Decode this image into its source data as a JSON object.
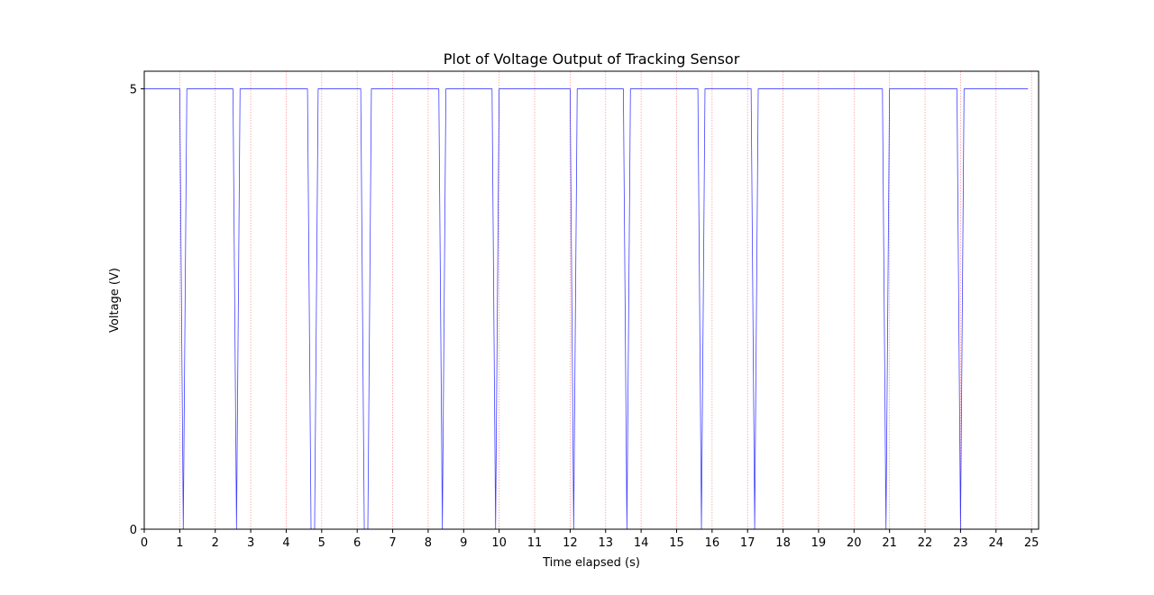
{
  "chart_data": {
    "type": "line",
    "title": "Plot of Voltage Output of Tracking Sensor",
    "xlabel": "Time elapsed (s)",
    "ylabel": "Voltage (V)",
    "xlim": [
      0,
      25.2
    ],
    "ylim": [
      0,
      5.2
    ],
    "xticks": [
      0,
      1,
      2,
      3,
      4,
      5,
      6,
      7,
      8,
      9,
      10,
      11,
      12,
      13,
      14,
      15,
      16,
      17,
      18,
      19,
      20,
      21,
      22,
      23,
      24,
      25
    ],
    "xtick_labels": [
      "0",
      "1",
      "2",
      "3",
      "4",
      "5",
      "6",
      "7",
      "8",
      "9",
      "10",
      "11",
      "12",
      "13",
      "14",
      "15",
      "16",
      "17",
      "18",
      "19",
      "20",
      "21",
      "22",
      "23",
      "24",
      "25"
    ],
    "yticks": [
      0,
      5
    ],
    "ytick_labels": [
      "0",
      "5"
    ],
    "grid": "x-only dotted",
    "colors": {
      "line": "#0000ff",
      "grid": "#ff9999"
    },
    "series": [
      {
        "x": [
          0,
          1.0,
          1.1,
          1.2,
          2.5,
          2.6,
          2.7,
          4.6,
          4.7,
          4.8,
          4.9,
          6.1,
          6.2,
          6.3,
          6.4,
          8.3,
          8.4,
          8.5,
          9.8,
          9.9,
          10.0,
          12.0,
          12.1,
          12.2,
          13.5,
          13.6,
          13.7,
          15.6,
          15.7,
          15.8,
          17.1,
          17.2,
          17.3,
          20.8,
          20.9,
          21.0,
          22.9,
          23.0,
          23.1,
          24.9
        ],
        "y": [
          5,
          5,
          0,
          5,
          5,
          0,
          5,
          5,
          0,
          0,
          5,
          5,
          0,
          0,
          5,
          5,
          0,
          5,
          5,
          0,
          5,
          5,
          0,
          5,
          5,
          0,
          5,
          5,
          0,
          5,
          5,
          0,
          5,
          5,
          0,
          5,
          5,
          0,
          5,
          5
        ]
      }
    ]
  }
}
